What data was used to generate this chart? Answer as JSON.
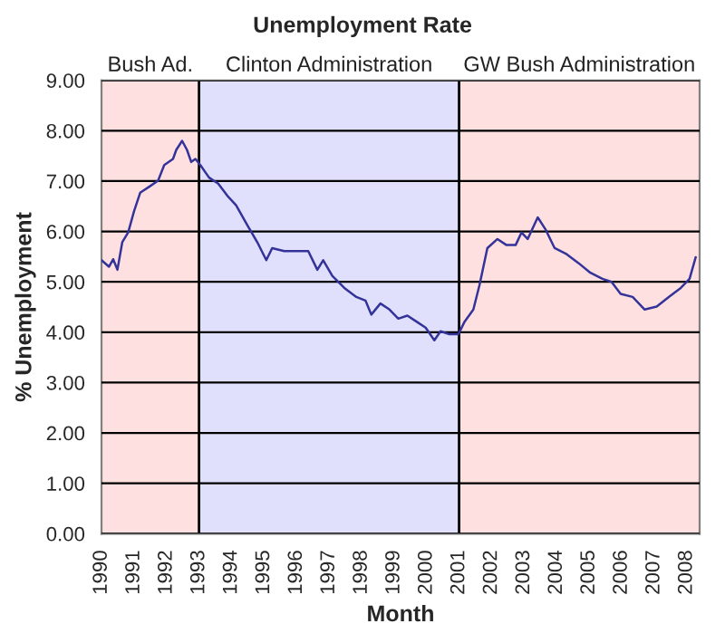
{
  "chart_data": {
    "type": "line",
    "title": "Unemployment Rate",
    "xlabel": "Month",
    "ylabel": "% Unemployment",
    "series": [
      {
        "color": "#333399",
        "x": [
          1990.0,
          1990.23,
          1990.36,
          1990.49,
          1990.64,
          1990.82,
          1991.0,
          1991.19,
          1991.47,
          1991.74,
          1991.93,
          1992.2,
          1992.3,
          1992.48,
          1992.63,
          1992.76,
          1992.89,
          1993.04,
          1993.31,
          1993.59,
          1993.87,
          1994.14,
          1994.51,
          1994.79,
          1995.07,
          1995.25,
          1995.62,
          1996.08,
          1996.36,
          1996.64,
          1996.82,
          1997.1,
          1997.47,
          1997.84,
          1998.12,
          1998.3,
          1998.58,
          1998.86,
          1999.13,
          1999.41,
          1999.69,
          1999.97,
          2000.24,
          2000.43,
          2000.7,
          2000.98,
          2001.17,
          2001.44,
          2001.63,
          2001.87,
          2002.18,
          2002.46,
          2002.74,
          2002.92,
          2003.11,
          2003.42,
          2003.66,
          2003.94,
          2004.31,
          2004.68,
          2005.04,
          2005.41,
          2005.69,
          2005.97,
          2006.34,
          2006.71,
          2007.08,
          2007.45,
          2007.82,
          2008.09,
          2008.28
        ],
        "values": [
          5.43,
          5.3,
          5.45,
          5.24,
          5.79,
          5.98,
          6.4,
          6.77,
          6.89,
          7.01,
          7.32,
          7.44,
          7.62,
          7.8,
          7.62,
          7.38,
          7.44,
          7.32,
          7.07,
          6.95,
          6.71,
          6.52,
          6.1,
          5.79,
          5.43,
          5.67,
          5.61,
          5.61,
          5.61,
          5.24,
          5.43,
          5.12,
          4.88,
          4.7,
          4.63,
          4.35,
          4.57,
          4.45,
          4.27,
          4.33,
          4.21,
          4.09,
          3.84,
          4.02,
          3.96,
          3.96,
          4.21,
          4.45,
          4.94,
          5.67,
          5.85,
          5.73,
          5.73,
          5.98,
          5.85,
          6.28,
          6.04,
          5.67,
          5.55,
          5.37,
          5.18,
          5.06,
          5.0,
          4.76,
          4.7,
          4.45,
          4.51,
          4.7,
          4.88,
          5.06,
          5.49
        ]
      }
    ],
    "xlim": [
      1990,
      2008.4
    ],
    "xticks": [
      1990,
      1991,
      1992,
      1993,
      1994,
      1995,
      1996,
      1997,
      1998,
      1999,
      2000,
      2001,
      2002,
      2003,
      2004,
      2005,
      2006,
      2007,
      2008
    ],
    "ylim": [
      0,
      9
    ],
    "yticks": [
      {
        "value": 0,
        "label": "0.00"
      },
      {
        "value": 1,
        "label": "1.00"
      },
      {
        "value": 2,
        "label": "2.00"
      },
      {
        "value": 3,
        "label": "3.00"
      },
      {
        "value": 4,
        "label": "4.00"
      },
      {
        "value": 5,
        "label": "5.00"
      },
      {
        "value": 6,
        "label": "6.00"
      },
      {
        "value": 7,
        "label": "7.00"
      },
      {
        "value": 8,
        "label": "8.00"
      },
      {
        "value": 9,
        "label": "9.00"
      }
    ],
    "bands": [
      {
        "axis": "x",
        "from": 1990,
        "to": 1993,
        "label": "Bush Ad.",
        "color": "#ffe0e0"
      },
      {
        "axis": "x",
        "from": 1993,
        "to": 2001,
        "label": "Clinton Administration",
        "color": "#e0e0fc"
      },
      {
        "axis": "x",
        "from": 2001,
        "to": 2008.4,
        "label": "GW Bush Administration",
        "color": "#ffe0e0"
      }
    ],
    "ref_lines": [
      {
        "axis": "x",
        "value": 1993,
        "color": "#000000"
      },
      {
        "axis": "x",
        "value": 2001,
        "color": "#000000"
      }
    ],
    "grid": "y",
    "legend": false
  }
}
